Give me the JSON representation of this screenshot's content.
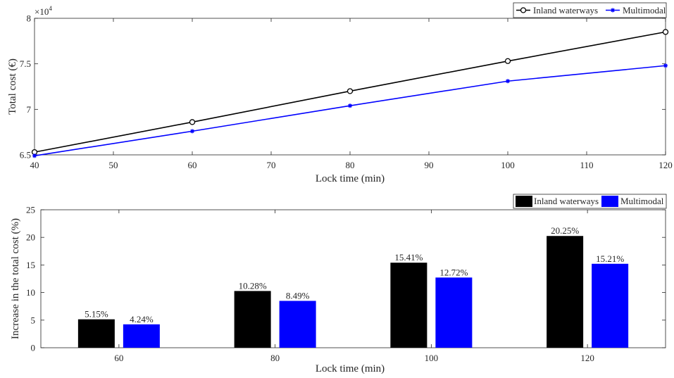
{
  "chart_data": [
    {
      "type": "line",
      "x": [
        40,
        60,
        80,
        100,
        120
      ],
      "series": [
        {
          "name": "Inland waterways",
          "values": [
            65300,
            68600,
            72000,
            75300,
            78500
          ],
          "color": "#000000",
          "marker": "circle"
        },
        {
          "name": "Multimodal",
          "values": [
            64900,
            67600,
            70400,
            73100,
            74800
          ],
          "color": "#0000ff",
          "marker": "asterisk"
        }
      ],
      "xlabel": "Lock time (min)",
      "ylabel": "Total cost (€)",
      "xlim": [
        40,
        120
      ],
      "ylim": [
        65000,
        80000
      ],
      "xticks": [
        40,
        50,
        60,
        70,
        80,
        90,
        100,
        110,
        120
      ],
      "yticks": [
        65000,
        70000,
        75000,
        80000
      ],
      "ytick_labels": [
        "6.5",
        "7",
        "7.5",
        "8"
      ],
      "exponent_label": "×10",
      "exponent_power": "4",
      "legend": "top-right",
      "grid": false
    },
    {
      "type": "bar",
      "categories": [
        "60",
        "80",
        "100",
        "120"
      ],
      "series": [
        {
          "name": "Inland waterways",
          "values": [
            5.15,
            10.28,
            15.41,
            20.25
          ],
          "labels": [
            "5.15%",
            "10.28%",
            "15.41%",
            "20.25%"
          ],
          "color": "#000000"
        },
        {
          "name": "Multimodal",
          "values": [
            4.24,
            8.49,
            12.72,
            15.21
          ],
          "labels": [
            "4.24%",
            "8.49%",
            "12.72%",
            "15.21%"
          ],
          "color": "#0000ff"
        }
      ],
      "xlabel": "Lock time (min)",
      "ylabel": "Increase in the total cost (%)",
      "ylim": [
        0,
        25
      ],
      "yticks": [
        0,
        5,
        10,
        15,
        20,
        25
      ],
      "legend": "top-right",
      "grid": false
    }
  ]
}
